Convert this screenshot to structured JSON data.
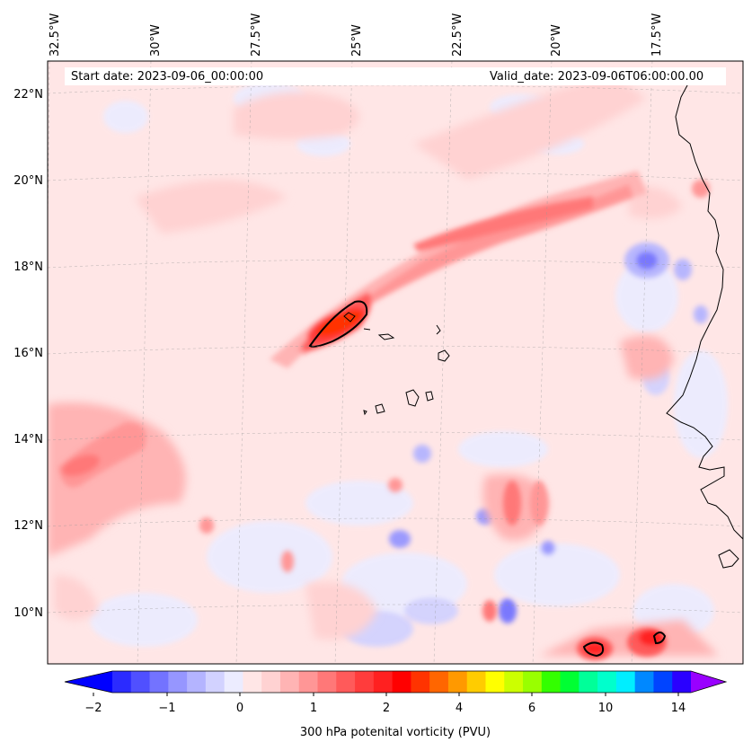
{
  "map": {
    "start_date": "Start date: 2023-09-06_00:00:00",
    "valid_date": "Valid_date: 2023-09-06T06:00:00.00",
    "longitude_labels": [
      "32.5°W",
      "30°W",
      "27.5°W",
      "25°W",
      "22.5°W",
      "20°W",
      "17.5°W"
    ],
    "latitude_labels": [
      "22°N",
      "20°N",
      "18°N",
      "16°N",
      "14°N",
      "12°N",
      "10°N"
    ],
    "extent": {
      "lon_min": -32.6,
      "lon_max": -15.3,
      "lat_min": 8.9,
      "lat_max": 22.8
    }
  },
  "colorbar": {
    "label": "300 hPa potenital vorticity (PVU)",
    "tick_labels": [
      "−2",
      "−1",
      "0",
      "1",
      "2",
      "4",
      "6",
      "10",
      "14"
    ],
    "levels": [
      -2,
      -1,
      0,
      1,
      2,
      4,
      6,
      10,
      14
    ],
    "colors": [
      "#0000ff",
      "#2b2bff",
      "#5050ff",
      "#7373ff",
      "#9696ff",
      "#b4b4ff",
      "#d2d2ff",
      "#ececff",
      "#ffe6e6",
      "#ffd2d2",
      "#ffb4b4",
      "#ff9696",
      "#ff7878",
      "#ff5a5a",
      "#ff3c3c",
      "#ff2020",
      "#ff0000",
      "#ff3300",
      "#ff6600",
      "#ff9900",
      "#ffcc00",
      "#ffff00",
      "#ccff00",
      "#99ff00",
      "#33ff00",
      "#00ff33",
      "#00ff99",
      "#00ffcc",
      "#00eeff",
      "#0088ff",
      "#0044ff",
      "#2a00ff",
      "#9900ff"
    ],
    "extend": "both"
  }
}
